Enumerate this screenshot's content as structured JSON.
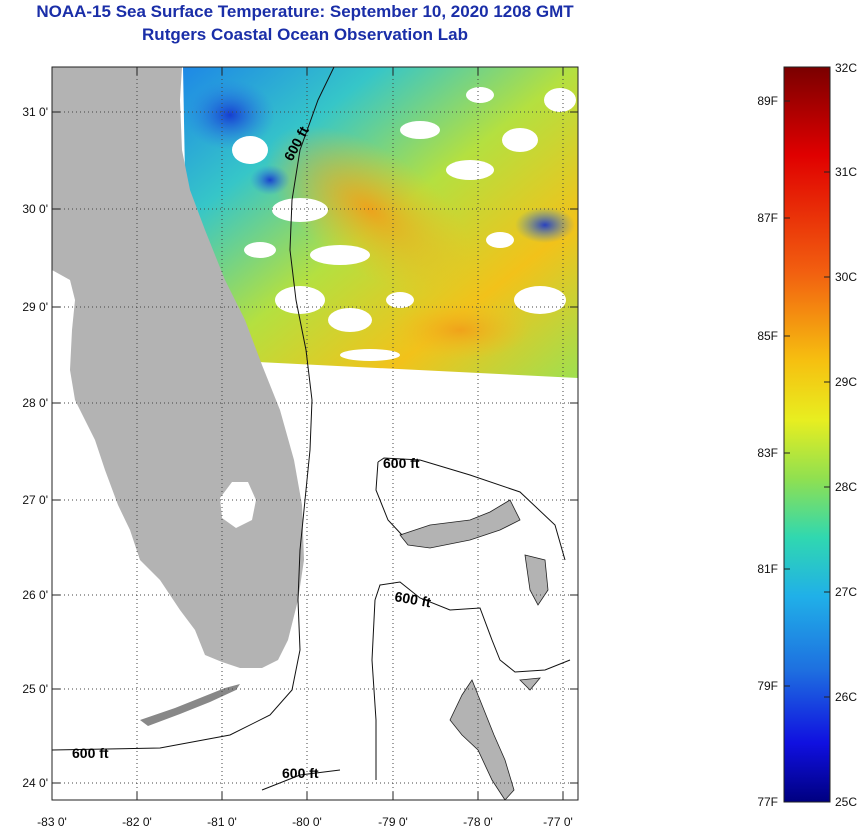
{
  "header": {
    "title": "NOAA-15 Sea Surface Temperature:  September 10, 2020 1208 GMT",
    "subtitle": "Rutgers Coastal Ocean Observation Lab"
  },
  "map": {
    "lat_labels": [
      "31 0'",
      "30 0'",
      "29 0'",
      "28 0'",
      "27 0'",
      "26 0'",
      "25 0'",
      "24 0'"
    ],
    "lon_labels": [
      "-83 0'",
      "-82 0'",
      "-81 0'",
      "-80 0'",
      "-79 0'",
      "-78 0'",
      "-77 0'"
    ],
    "isobath_labels": [
      "600 ft",
      "600 ft",
      "600 ft",
      "600 ft",
      "600 ft"
    ],
    "colors": {
      "land": "#b3b3b3",
      "cloud": "#ffffff",
      "grid": "#333333"
    }
  },
  "colorbar": {
    "fahrenheit_labels": [
      "89F",
      "87F",
      "85F",
      "83F",
      "81F",
      "79F",
      "77F"
    ],
    "celsius_labels": [
      "32C",
      "31C",
      "30C",
      "29C",
      "28C",
      "27C",
      "26C",
      "25C"
    ],
    "range_celsius": [
      25,
      32
    ]
  }
}
